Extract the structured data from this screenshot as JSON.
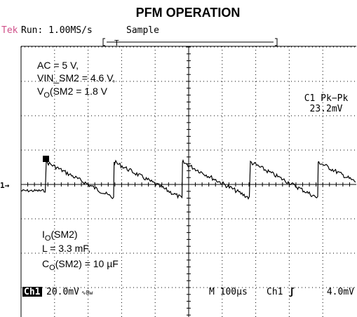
{
  "title": "PFM OPERATION",
  "header": {
    "brand": "Tek",
    "run": "Run: 1.00MS/s",
    "mode": "Sample",
    "trigger_marker": "T"
  },
  "conditions": {
    "line1": "AC = 5 V,",
    "line2": "VIN_SM2 = 4.6 V,",
    "line3": {
      "main": "V",
      "sub": "O",
      "rest": "(SM2 = 1.8 V"
    }
  },
  "measurement": {
    "label": "C1 Pk−Pk",
    "value": "23.2mV"
  },
  "load": {
    "line1": {
      "main": "I",
      "sub": "O",
      "rest": "(SM2)"
    },
    "line2": "L = 3.3 mF,",
    "line3": {
      "main": "C",
      "sub": "O",
      "rest": "(SM2) = 10 µF"
    }
  },
  "channel_marker": "1→",
  "footer": {
    "channel": "Ch1",
    "scale": "20.0mV",
    "bw": "∿Bw",
    "timebase": "M 100µs",
    "trig_channel": "Ch1",
    "trig_slope": "ʃ",
    "trig_level": "4.0mV"
  }
}
